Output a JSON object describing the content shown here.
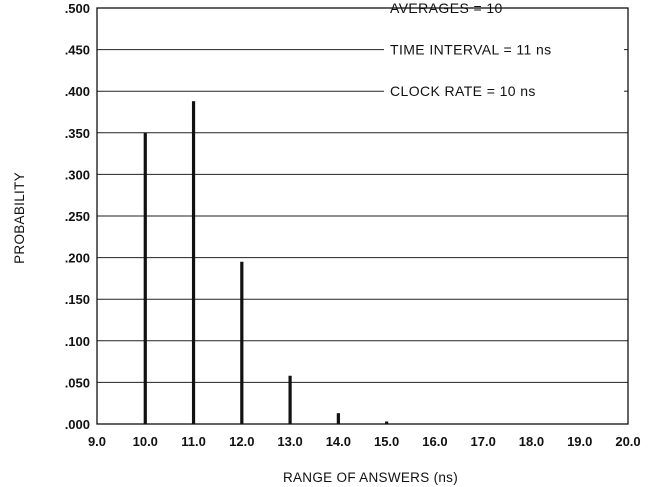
{
  "chart_data": {
    "type": "bar",
    "title": "",
    "xlabel": "RANGE OF ANSWERS (ns)",
    "ylabel": "PROBABILITY",
    "xlim": [
      9.0,
      20.0
    ],
    "ylim": [
      0.0,
      0.5
    ],
    "grid": true,
    "x": [
      10.0,
      11.0,
      12.0,
      13.0,
      14.0,
      15.0
    ],
    "values": [
      0.35,
      0.388,
      0.195,
      0.058,
      0.013,
      0.003
    ],
    "x_tick_labels": [
      "9.0",
      "10.0",
      "11.0",
      "12.0",
      "13.0",
      "14.0",
      "15.0",
      "16.0",
      "17.0",
      "18.0",
      "19.0",
      "20.0"
    ],
    "y_tick_labels": [
      ".000",
      ".050",
      ".100",
      ".150",
      ".200",
      ".250",
      ".300",
      ".350",
      ".400",
      ".450",
      ".500"
    ],
    "annotations": [
      "AVERAGES = 10",
      "TIME INTERVAL = 11 ns",
      "CLOCK RATE = 10 ns"
    ]
  }
}
